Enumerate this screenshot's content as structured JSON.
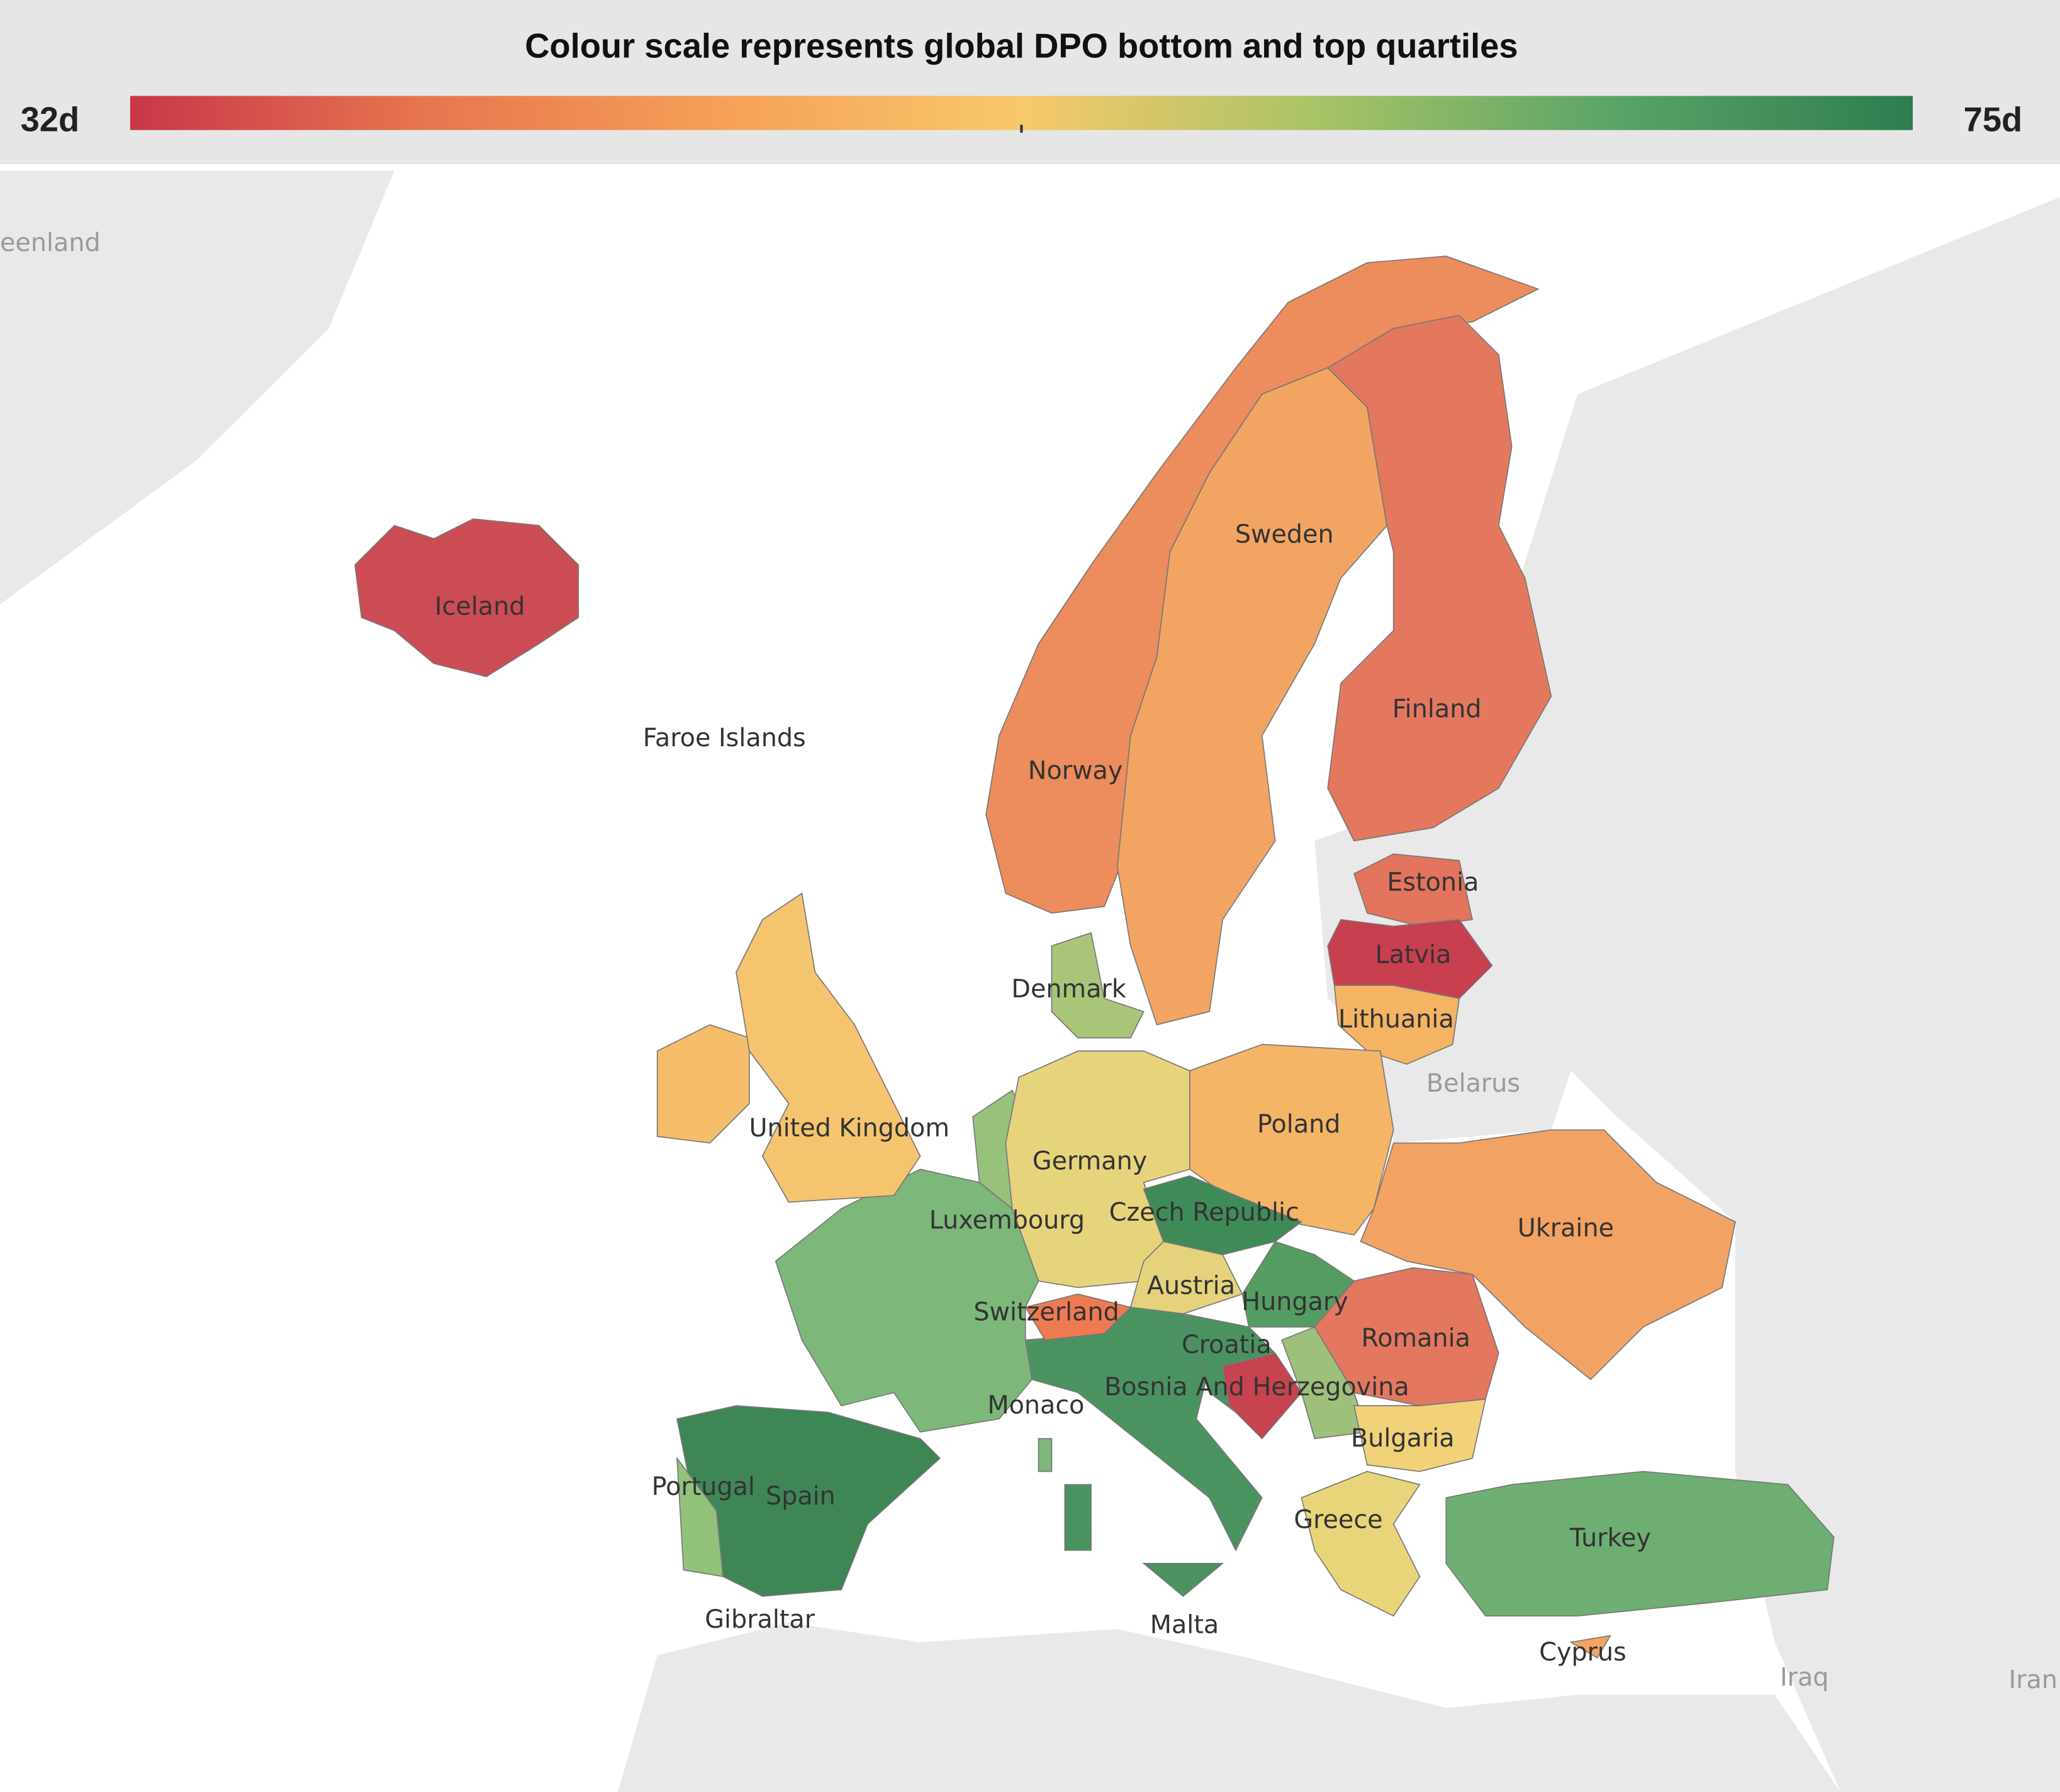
{
  "title": "Colour scale represents global DPO bottom and top quartiles",
  "colour_scale": {
    "min_label": "32d",
    "max_label": "75d",
    "colors": [
      "#c8374a",
      "#e8764f",
      "#f6a057",
      "#f7c96a",
      "#a8c366",
      "#5aa468",
      "#2e7d4f"
    ]
  },
  "countries": [
    {
      "name": "Iceland",
      "color": "#cc4c56"
    },
    {
      "name": "Norway",
      "color": "#ed8c5c"
    },
    {
      "name": "Sweden",
      "color": "#f2a562"
    },
    {
      "name": "Finland",
      "color": "#e4785f"
    },
    {
      "name": "Estonia",
      "color": "#e3745e"
    },
    {
      "name": "Latvia",
      "color": "#c83f50"
    },
    {
      "name": "Lithuania",
      "color": "#f4b463"
    },
    {
      "name": "Poland",
      "color": "#f5b566"
    },
    {
      "name": "Ukraine",
      "color": "#f2a262"
    },
    {
      "name": "Romania",
      "color": "#e4775f"
    },
    {
      "name": "Bulgaria",
      "color": "#f1d279"
    },
    {
      "name": "Greece",
      "color": "#e8d57a"
    },
    {
      "name": "Turkey",
      "color": "#6fae72"
    },
    {
      "name": "Cyprus",
      "color": "#f4a460"
    },
    {
      "name": "Germany",
      "color": "#e6d47c"
    },
    {
      "name": "Denmark",
      "color": "#a8c57a"
    },
    {
      "name": "Czech Republic",
      "color": "#3f8b58"
    },
    {
      "name": "Austria",
      "color": "#e4d27c"
    },
    {
      "name": "Hungary",
      "color": "#559c63"
    },
    {
      "name": "Switzerland",
      "color": "#ee7a52"
    },
    {
      "name": "Croatia",
      "color": "#4a9361"
    },
    {
      "name": "Bosnia And Herzegovina",
      "color": "#c6434f"
    },
    {
      "name": "Spain",
      "color": "#3f8656"
    },
    {
      "name": "Portugal",
      "color": "#92c17a"
    },
    {
      "name": "United Kingdom",
      "color": "#f4c46f"
    },
    {
      "name": "Luxembourg"
    },
    {
      "name": "Monaco"
    },
    {
      "name": "Gibraltar"
    },
    {
      "name": "Malta"
    },
    {
      "name": "Faroe Islands"
    }
  ],
  "other_regions": [
    {
      "color": "#f5bd6a"
    },
    {
      "color": "#7db77a"
    },
    {
      "color": "#4a9361"
    },
    {
      "color": "#9ec07a"
    },
    {
      "color": "#98c27c"
    }
  ],
  "background_labels": [
    "eenland",
    "Belarus",
    "Iraq",
    "Iran"
  ]
}
